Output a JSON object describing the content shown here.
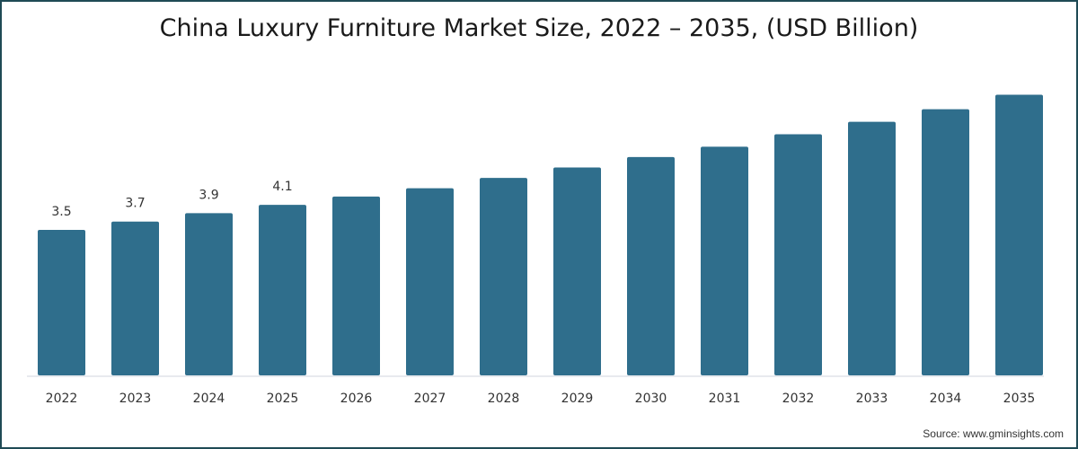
{
  "chart_data": {
    "type": "bar",
    "title": "China Luxury Furniture Market Size, 2022 – 2035, (USD Billion)",
    "xlabel": "",
    "ylabel": "",
    "categories": [
      "2022",
      "2023",
      "2024",
      "2025",
      "2026",
      "2027",
      "2028",
      "2029",
      "2030",
      "2031",
      "2032",
      "2033",
      "2034",
      "2035"
    ],
    "values": [
      3.5,
      3.7,
      3.9,
      4.1,
      4.3,
      4.5,
      4.75,
      5.0,
      5.25,
      5.5,
      5.8,
      6.1,
      6.4,
      6.75
    ],
    "data_labels": [
      "3.5",
      "3.7",
      "3.9",
      "4.1",
      "",
      "",
      "",
      "",
      "",
      "",
      "",
      "",
      "",
      ""
    ],
    "ylim": [
      0,
      7
    ],
    "grid": false,
    "bar_color": "#2f6e8c",
    "source": "Source: www.gminsights.com"
  }
}
